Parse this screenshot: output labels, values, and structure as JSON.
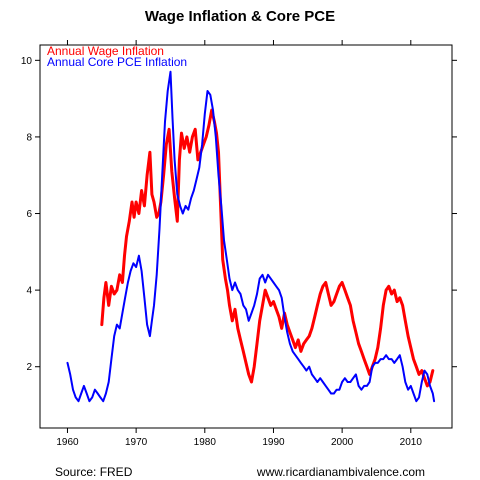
{
  "chart_data": {
    "type": "line",
    "title": "Wage Inflation & Core PCE",
    "xlabel": "",
    "ylabel": "",
    "xlim": [
      1956,
      2016
    ],
    "ylim": [
      0.4,
      10.4
    ],
    "x_ticks": [
      1960,
      1970,
      1980,
      1990,
      2000,
      2010
    ],
    "y_ticks": [
      2,
      4,
      6,
      8,
      10
    ],
    "grid": false,
    "legend_position": "top-left",
    "series": [
      {
        "name": "Annual Wage Inflation",
        "color": "#ff0000",
        "points": [
          [
            1965.0,
            3.1
          ],
          [
            1965.3,
            3.8
          ],
          [
            1965.6,
            4.2
          ],
          [
            1966.0,
            3.6
          ],
          [
            1966.4,
            4.1
          ],
          [
            1966.8,
            3.9
          ],
          [
            1967.2,
            4.0
          ],
          [
            1967.6,
            4.4
          ],
          [
            1968.0,
            4.2
          ],
          [
            1968.3,
            4.9
          ],
          [
            1968.6,
            5.4
          ],
          [
            1969.0,
            5.8
          ],
          [
            1969.4,
            6.3
          ],
          [
            1969.7,
            5.9
          ],
          [
            1970.0,
            6.3
          ],
          [
            1970.4,
            6.0
          ],
          [
            1970.8,
            6.6
          ],
          [
            1971.2,
            6.2
          ],
          [
            1971.6,
            7.0
          ],
          [
            1972.0,
            7.6
          ],
          [
            1972.3,
            6.5
          ],
          [
            1972.6,
            6.3
          ],
          [
            1973.0,
            5.9
          ],
          [
            1973.3,
            6.0
          ],
          [
            1973.6,
            6.3
          ],
          [
            1974.0,
            7.0
          ],
          [
            1974.4,
            7.8
          ],
          [
            1974.8,
            8.2
          ],
          [
            1975.2,
            7.1
          ],
          [
            1975.6,
            6.4
          ],
          [
            1976.0,
            5.8
          ],
          [
            1976.3,
            7.4
          ],
          [
            1976.6,
            8.1
          ],
          [
            1977.0,
            7.7
          ],
          [
            1977.4,
            8.0
          ],
          [
            1977.8,
            7.6
          ],
          [
            1978.2,
            8.0
          ],
          [
            1978.6,
            8.2
          ],
          [
            1979.0,
            7.4
          ],
          [
            1979.4,
            7.6
          ],
          [
            1979.8,
            7.8
          ],
          [
            1980.2,
            8.0
          ],
          [
            1980.6,
            8.3
          ],
          [
            1981.0,
            8.7
          ],
          [
            1981.4,
            8.4
          ],
          [
            1981.7,
            8.1
          ],
          [
            1982.0,
            7.6
          ],
          [
            1982.3,
            6.2
          ],
          [
            1982.6,
            4.8
          ],
          [
            1983.0,
            4.3
          ],
          [
            1983.3,
            4.0
          ],
          [
            1983.6,
            3.6
          ],
          [
            1984.0,
            3.2
          ],
          [
            1984.4,
            3.5
          ],
          [
            1984.8,
            3.0
          ],
          [
            1985.2,
            2.7
          ],
          [
            1985.6,
            2.4
          ],
          [
            1986.0,
            2.1
          ],
          [
            1986.4,
            1.8
          ],
          [
            1986.8,
            1.6
          ],
          [
            1987.2,
            2.0
          ],
          [
            1987.6,
            2.6
          ],
          [
            1988.0,
            3.2
          ],
          [
            1988.4,
            3.6
          ],
          [
            1988.8,
            4.0
          ],
          [
            1989.2,
            3.8
          ],
          [
            1989.6,
            3.6
          ],
          [
            1990.0,
            3.7
          ],
          [
            1990.4,
            3.5
          ],
          [
            1990.8,
            3.3
          ],
          [
            1991.2,
            3.0
          ],
          [
            1991.6,
            3.4
          ],
          [
            1992.0,
            3.1
          ],
          [
            1992.4,
            2.9
          ],
          [
            1992.8,
            2.7
          ],
          [
            1993.2,
            2.5
          ],
          [
            1993.6,
            2.7
          ],
          [
            1994.0,
            2.4
          ],
          [
            1994.4,
            2.6
          ],
          [
            1994.8,
            2.7
          ],
          [
            1995.2,
            2.8
          ],
          [
            1995.6,
            3.0
          ],
          [
            1996.0,
            3.3
          ],
          [
            1996.4,
            3.6
          ],
          [
            1996.8,
            3.9
          ],
          [
            1997.2,
            4.1
          ],
          [
            1997.6,
            4.2
          ],
          [
            1998.0,
            3.9
          ],
          [
            1998.4,
            3.6
          ],
          [
            1998.8,
            3.7
          ],
          [
            1999.2,
            3.9
          ],
          [
            1999.6,
            4.1
          ],
          [
            2000.0,
            4.2
          ],
          [
            2000.4,
            4.0
          ],
          [
            2000.8,
            3.8
          ],
          [
            2001.2,
            3.6
          ],
          [
            2001.6,
            3.2
          ],
          [
            2002.0,
            2.9
          ],
          [
            2002.4,
            2.6
          ],
          [
            2002.8,
            2.4
          ],
          [
            2003.2,
            2.2
          ],
          [
            2003.6,
            2.0
          ],
          [
            2004.0,
            1.8
          ],
          [
            2004.4,
            2.0
          ],
          [
            2004.8,
            2.2
          ],
          [
            2005.2,
            2.5
          ],
          [
            2005.6,
            3.0
          ],
          [
            2006.0,
            3.6
          ],
          [
            2006.4,
            4.0
          ],
          [
            2006.8,
            4.1
          ],
          [
            2007.2,
            3.9
          ],
          [
            2007.6,
            4.0
          ],
          [
            2008.0,
            3.7
          ],
          [
            2008.4,
            3.8
          ],
          [
            2008.8,
            3.6
          ],
          [
            2009.2,
            3.2
          ],
          [
            2009.6,
            2.8
          ],
          [
            2010.0,
            2.5
          ],
          [
            2010.4,
            2.2
          ],
          [
            2010.8,
            2.0
          ],
          [
            2011.2,
            1.8
          ],
          [
            2011.6,
            1.9
          ],
          [
            2012.0,
            1.7
          ],
          [
            2012.4,
            1.5
          ],
          [
            2012.8,
            1.6
          ],
          [
            2013.2,
            1.9
          ]
        ]
      },
      {
        "name": "Annual Core PCE Inflation",
        "color": "#0000ff",
        "points": [
          [
            1960.0,
            2.1
          ],
          [
            1960.4,
            1.8
          ],
          [
            1960.8,
            1.4
          ],
          [
            1961.2,
            1.2
          ],
          [
            1961.6,
            1.1
          ],
          [
            1962.0,
            1.3
          ],
          [
            1962.4,
            1.5
          ],
          [
            1962.8,
            1.3
          ],
          [
            1963.2,
            1.1
          ],
          [
            1963.6,
            1.2
          ],
          [
            1964.0,
            1.4
          ],
          [
            1964.4,
            1.3
          ],
          [
            1964.8,
            1.2
          ],
          [
            1965.2,
            1.1
          ],
          [
            1965.6,
            1.3
          ],
          [
            1966.0,
            1.6
          ],
          [
            1966.4,
            2.2
          ],
          [
            1966.8,
            2.8
          ],
          [
            1967.2,
            3.1
          ],
          [
            1967.6,
            3.0
          ],
          [
            1968.0,
            3.4
          ],
          [
            1968.4,
            3.8
          ],
          [
            1968.8,
            4.2
          ],
          [
            1969.2,
            4.5
          ],
          [
            1969.6,
            4.7
          ],
          [
            1970.0,
            4.6
          ],
          [
            1970.4,
            4.9
          ],
          [
            1970.8,
            4.5
          ],
          [
            1971.2,
            3.8
          ],
          [
            1971.6,
            3.1
          ],
          [
            1972.0,
            2.8
          ],
          [
            1972.3,
            3.2
          ],
          [
            1972.6,
            3.6
          ],
          [
            1973.0,
            4.4
          ],
          [
            1973.4,
            5.6
          ],
          [
            1973.8,
            7.0
          ],
          [
            1974.2,
            8.4
          ],
          [
            1974.6,
            9.2
          ],
          [
            1975.0,
            9.7
          ],
          [
            1975.3,
            8.5
          ],
          [
            1975.6,
            7.4
          ],
          [
            1976.0,
            6.5
          ],
          [
            1976.4,
            6.2
          ],
          [
            1976.8,
            6.0
          ],
          [
            1977.2,
            6.2
          ],
          [
            1977.6,
            6.1
          ],
          [
            1978.0,
            6.4
          ],
          [
            1978.4,
            6.6
          ],
          [
            1978.8,
            6.9
          ],
          [
            1979.2,
            7.2
          ],
          [
            1979.6,
            7.8
          ],
          [
            1980.0,
            8.6
          ],
          [
            1980.4,
            9.2
          ],
          [
            1980.8,
            9.1
          ],
          [
            1981.2,
            8.7
          ],
          [
            1981.6,
            8.0
          ],
          [
            1982.0,
            7.0
          ],
          [
            1982.4,
            6.2
          ],
          [
            1982.8,
            5.3
          ],
          [
            1983.2,
            4.8
          ],
          [
            1983.6,
            4.3
          ],
          [
            1984.0,
            4.0
          ],
          [
            1984.4,
            4.2
          ],
          [
            1984.8,
            4.0
          ],
          [
            1985.2,
            3.9
          ],
          [
            1985.6,
            3.6
          ],
          [
            1986.0,
            3.5
          ],
          [
            1986.4,
            3.2
          ],
          [
            1986.8,
            3.4
          ],
          [
            1987.2,
            3.6
          ],
          [
            1987.6,
            3.9
          ],
          [
            1988.0,
            4.3
          ],
          [
            1988.4,
            4.4
          ],
          [
            1988.8,
            4.2
          ],
          [
            1989.2,
            4.4
          ],
          [
            1989.6,
            4.3
          ],
          [
            1990.0,
            4.2
          ],
          [
            1990.4,
            4.1
          ],
          [
            1990.8,
            4.0
          ],
          [
            1991.2,
            3.8
          ],
          [
            1991.6,
            3.3
          ],
          [
            1992.0,
            2.9
          ],
          [
            1992.4,
            2.6
          ],
          [
            1992.8,
            2.4
          ],
          [
            1993.2,
            2.3
          ],
          [
            1993.6,
            2.2
          ],
          [
            1994.0,
            2.1
          ],
          [
            1994.4,
            2.0
          ],
          [
            1994.8,
            1.9
          ],
          [
            1995.2,
            2.0
          ],
          [
            1995.6,
            1.8
          ],
          [
            1996.0,
            1.7
          ],
          [
            1996.4,
            1.6
          ],
          [
            1996.8,
            1.7
          ],
          [
            1997.2,
            1.6
          ],
          [
            1997.6,
            1.5
          ],
          [
            1998.0,
            1.4
          ],
          [
            1998.4,
            1.3
          ],
          [
            1998.8,
            1.3
          ],
          [
            1999.2,
            1.4
          ],
          [
            1999.6,
            1.4
          ],
          [
            2000.0,
            1.6
          ],
          [
            2000.4,
            1.7
          ],
          [
            2000.8,
            1.6
          ],
          [
            2001.2,
            1.6
          ],
          [
            2001.6,
            1.7
          ],
          [
            2002.0,
            1.8
          ],
          [
            2002.4,
            1.5
          ],
          [
            2002.8,
            1.4
          ],
          [
            2003.2,
            1.5
          ],
          [
            2003.6,
            1.5
          ],
          [
            2004.0,
            1.6
          ],
          [
            2004.4,
            2.0
          ],
          [
            2004.8,
            2.1
          ],
          [
            2005.2,
            2.1
          ],
          [
            2005.6,
            2.2
          ],
          [
            2006.0,
            2.2
          ],
          [
            2006.4,
            2.3
          ],
          [
            2006.8,
            2.2
          ],
          [
            2007.2,
            2.2
          ],
          [
            2007.6,
            2.1
          ],
          [
            2008.0,
            2.2
          ],
          [
            2008.4,
            2.3
          ],
          [
            2008.8,
            2.0
          ],
          [
            2009.2,
            1.6
          ],
          [
            2009.6,
            1.4
          ],
          [
            2010.0,
            1.5
          ],
          [
            2010.4,
            1.3
          ],
          [
            2010.8,
            1.1
          ],
          [
            2011.2,
            1.2
          ],
          [
            2011.6,
            1.6
          ],
          [
            2012.0,
            1.9
          ],
          [
            2012.4,
            1.8
          ],
          [
            2012.8,
            1.5
          ],
          [
            2013.2,
            1.3
          ],
          [
            2013.4,
            1.1
          ]
        ]
      }
    ]
  },
  "footer": {
    "source": "Source: FRED",
    "website": "www.ricardianambivalence.com"
  }
}
